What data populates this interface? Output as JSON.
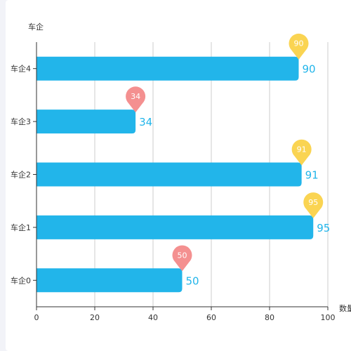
{
  "chart_data": {
    "type": "bar",
    "orientation": "horizontal",
    "categories": [
      "车企0",
      "车企1",
      "车企2",
      "车企3",
      "车企4"
    ],
    "values": [
      50,
      95,
      91,
      34,
      90
    ],
    "ylabel": "车企",
    "xlabel": "数量",
    "xlim": [
      0,
      100
    ],
    "xticks": [
      0,
      20,
      40,
      60,
      80,
      100
    ],
    "grid": "vertical",
    "marker_threshold": 80,
    "colors": {
      "bar": "#22b5ea",
      "value_label": "#22b5ea",
      "marker_high": "#fad452",
      "marker_low": "#f49090",
      "grid": "#cccccc",
      "axis": "#333333",
      "text": "#333333"
    }
  }
}
